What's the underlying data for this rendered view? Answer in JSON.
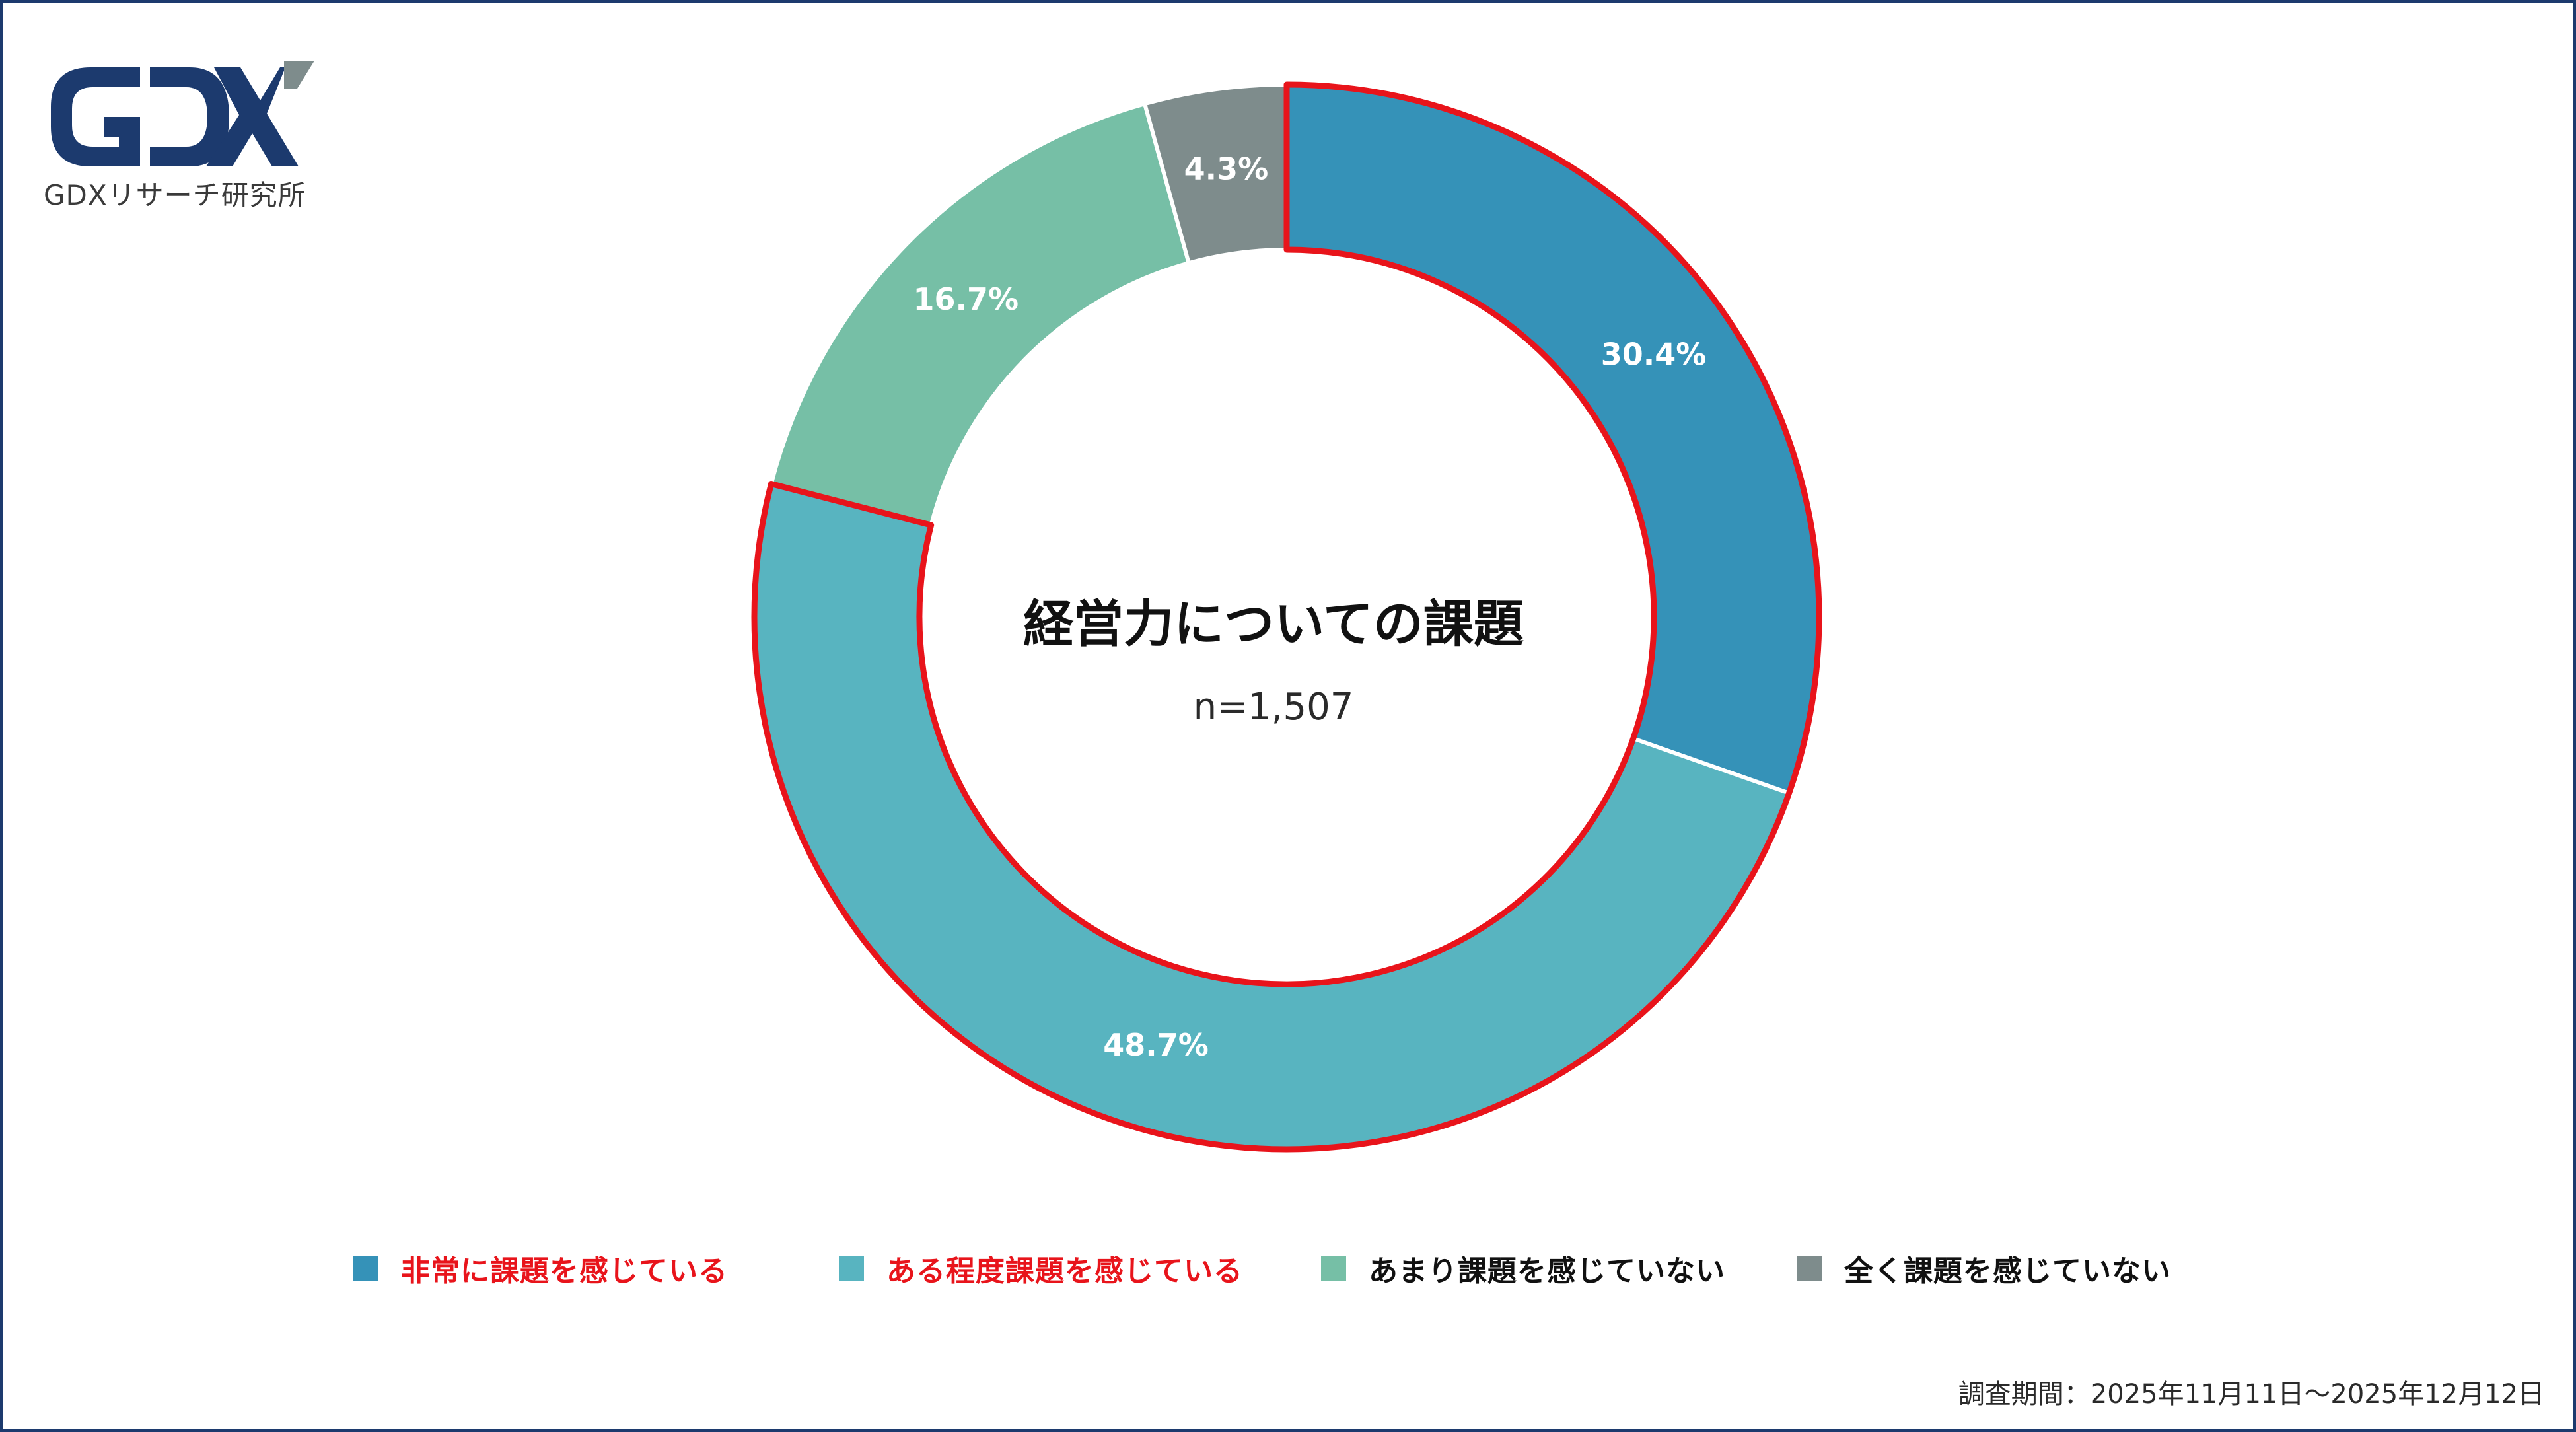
{
  "logo": {
    "mark": "GDX",
    "subtitle": "GDXリサーチ研究所"
  },
  "chart_data": {
    "type": "pie",
    "title": "経営力についての課題",
    "subtitle": "n=1,507",
    "categories": [
      "非常に課題を感じている",
      "ある程度課題を感じている",
      "あまり課題を感じていない",
      "全く課題を感じていない"
    ],
    "values": [
      30.4,
      48.7,
      16.7,
      4.3
    ],
    "value_labels": [
      "30.4%",
      "48.7%",
      "16.7%",
      "4.3%"
    ],
    "colors": [
      "#3592b8",
      "#58b4c0",
      "#76bfa6",
      "#7e8c8c"
    ],
    "highlight_categories": [
      "非常に課題を感じている",
      "ある程度課題を感じている"
    ],
    "highlight_color": "#e8141b",
    "legend_position": "bottom"
  },
  "legend_label_colors": [
    "#e8141b",
    "#e8141b",
    "#111111",
    "#111111"
  ],
  "footer": {
    "survey_period": "調査期間：2025年11月11日～2025年12月12日"
  }
}
